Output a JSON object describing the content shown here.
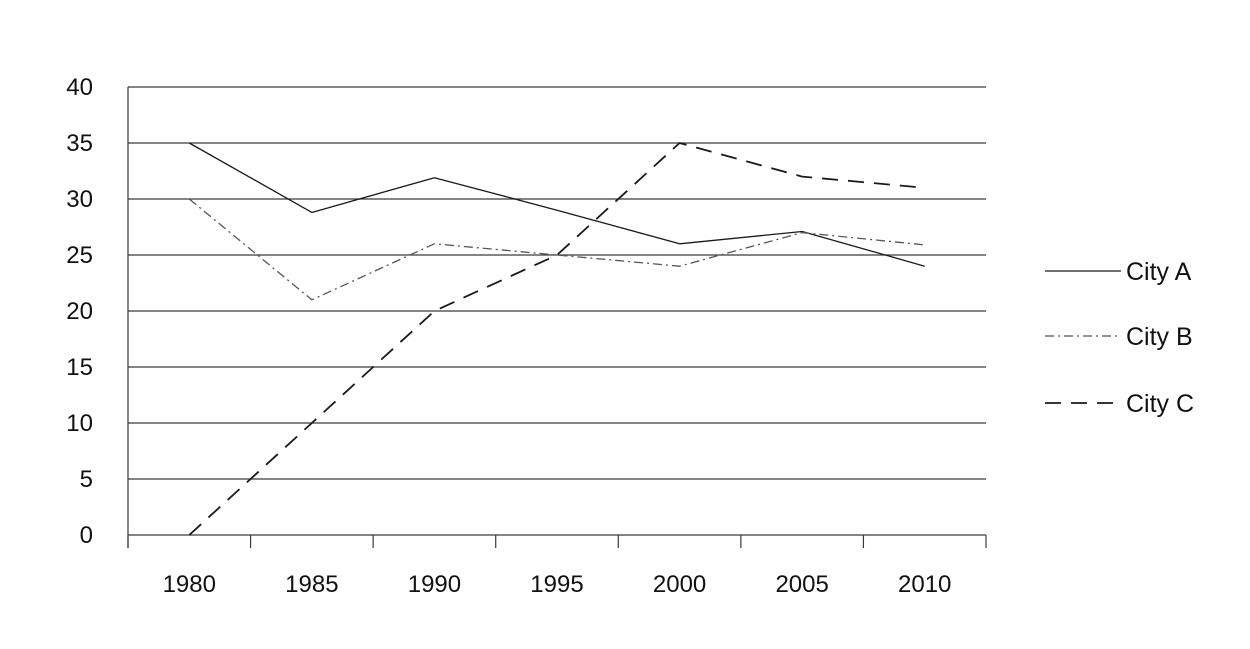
{
  "chart_data": {
    "type": "line",
    "title": "",
    "xlabel": "",
    "ylabel": "",
    "categories": [
      "1980",
      "1985",
      "1990",
      "1995",
      "2000",
      "2005",
      "2010"
    ],
    "series": [
      {
        "name": "City A",
        "values": [
          35,
          28.8,
          31.9,
          29,
          26,
          27.1,
          24
        ],
        "dash": "none",
        "color": "#1a1a1a"
      },
      {
        "name": "City B",
        "values": [
          30,
          21,
          26,
          25,
          24,
          27,
          25.9
        ],
        "dash": "dashdot",
        "color": "#555555"
      },
      {
        "name": "City C",
        "values": [
          0,
          10,
          20,
          25,
          35,
          32,
          31
        ],
        "dash": "dashed",
        "color": "#1a1a1a"
      }
    ],
    "ylim": [
      0,
      40
    ],
    "yticks": [
      0,
      5,
      10,
      15,
      20,
      25,
      30,
      35,
      40
    ],
    "grid": true,
    "legend": "right"
  }
}
